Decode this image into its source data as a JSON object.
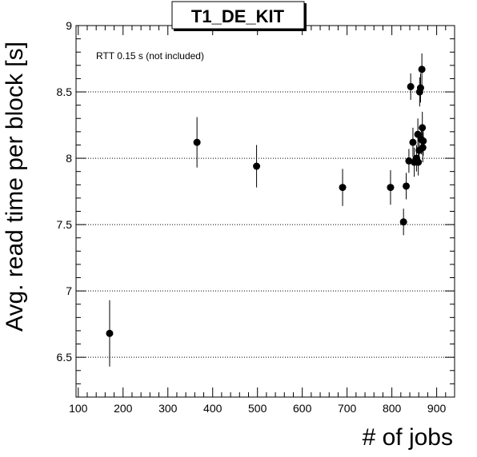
{
  "chart_data": {
    "type": "scatter",
    "title": "T1_DE_KIT",
    "xlabel": "# of jobs",
    "ylabel": "Avg. read time per block [s]",
    "annotation": "RTT 0.15 s (not included)",
    "xlim": [
      95,
      940
    ],
    "ylim": [
      6.2,
      9.0
    ],
    "x_ticks": [
      100,
      200,
      300,
      400,
      500,
      600,
      700,
      800,
      900
    ],
    "x_tick_labels": [
      "100",
      "200",
      "300",
      "400",
      "500",
      "600",
      "700",
      "800",
      "900"
    ],
    "y_ticks": [
      6.5,
      7,
      7.5,
      8,
      8.5,
      9
    ],
    "y_tick_labels": [
      "6.5",
      "7",
      "7.5",
      "8",
      "8.5",
      "9"
    ],
    "y_gridlines": true,
    "x_gridlines": false,
    "series": [
      {
        "marker": "filled-circle",
        "color": "#000000",
        "points": [
          {
            "x": 170,
            "y": 6.68,
            "err": 0.25
          },
          {
            "x": 365,
            "y": 8.12,
            "err": 0.19
          },
          {
            "x": 498,
            "y": 7.94,
            "err": 0.16
          },
          {
            "x": 690,
            "y": 7.78,
            "err": 0.14
          },
          {
            "x": 797,
            "y": 7.78,
            "err": 0.13
          },
          {
            "x": 826,
            "y": 7.52,
            "err": 0.1
          },
          {
            "x": 832,
            "y": 7.79,
            "err": 0.1
          },
          {
            "x": 838,
            "y": 7.98,
            "err": 0.09
          },
          {
            "x": 842,
            "y": 8.54,
            "err": 0.1
          },
          {
            "x": 847,
            "y": 8.12,
            "err": 0.11
          },
          {
            "x": 850,
            "y": 7.97,
            "err": 0.11
          },
          {
            "x": 855,
            "y": 8.0,
            "err": 0.1
          },
          {
            "x": 858,
            "y": 8.18,
            "err": 0.12
          },
          {
            "x": 859,
            "y": 7.97,
            "err": 0.1
          },
          {
            "x": 861,
            "y": 8.06,
            "err": 0.1
          },
          {
            "x": 862,
            "y": 8.5,
            "err": 0.11
          },
          {
            "x": 864,
            "y": 8.53,
            "err": 0.11
          },
          {
            "x": 866,
            "y": 8.14,
            "err": 0.11
          },
          {
            "x": 867,
            "y": 8.67,
            "err": 0.12
          },
          {
            "x": 868,
            "y": 8.23,
            "err": 0.12
          },
          {
            "x": 869,
            "y": 8.08,
            "err": 0.11
          },
          {
            "x": 870,
            "y": 8.13,
            "err": 0.11
          }
        ]
      }
    ]
  }
}
